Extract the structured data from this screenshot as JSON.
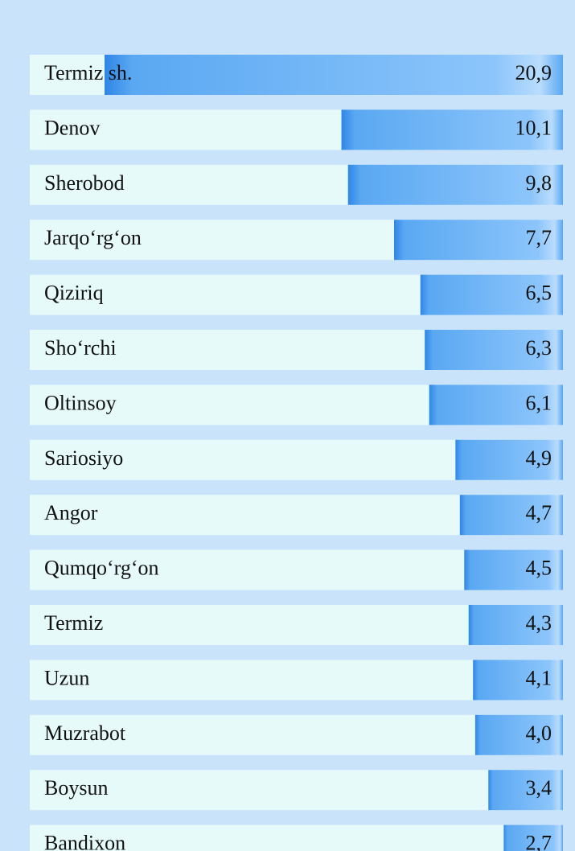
{
  "chart_data": {
    "type": "bar",
    "orientation": "horizontal",
    "color": "#5aa8f2",
    "categories": [
      "Termiz sh.",
      "Denov",
      "Sherobod",
      "Jarqo‘rg‘on",
      "Qiziriq",
      "Sho‘rchi",
      "Oltinsoy",
      "Sariosiyo",
      "Angor",
      "Qumqo‘rg‘on",
      "Termiz",
      "Uzun",
      "Muzrabot",
      "Boysun",
      "Bandixon"
    ],
    "values": [
      20.9,
      10.1,
      9.8,
      7.7,
      6.5,
      6.3,
      6.1,
      4.9,
      4.7,
      4.5,
      4.3,
      4.1,
      4.0,
      3.4,
      2.7
    ],
    "value_labels": [
      "20,9",
      "10,1",
      "9,8",
      "7,7",
      "6,5",
      "6,3",
      "6,1",
      "4,9",
      "4,7",
      "4,5",
      "4,3",
      "4,1",
      "4,0",
      "3,4",
      "2,7"
    ]
  }
}
